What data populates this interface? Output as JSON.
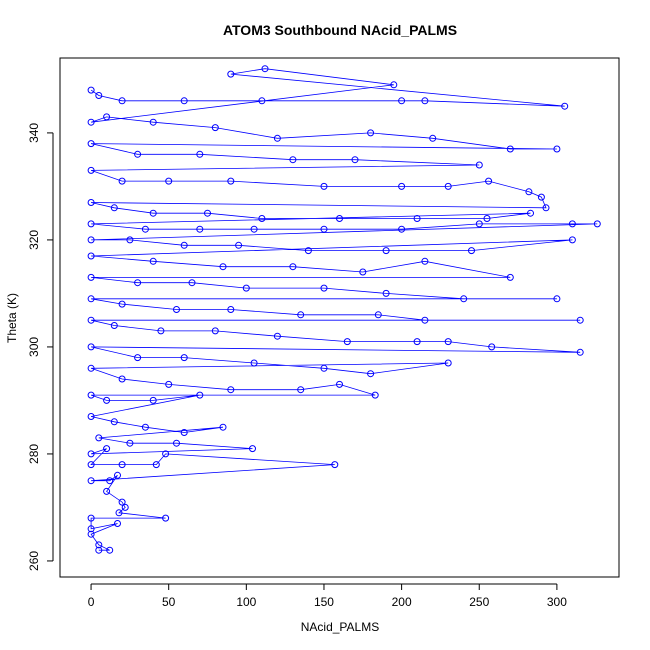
{
  "chart_data": {
    "type": "scatter",
    "title": "ATOM3 Southbound NAcid_PALMS",
    "xlabel": "NAcid_PALMS",
    "ylabel": "Theta (K)",
    "xlim": [
      -20,
      340
    ],
    "ylim": [
      257,
      354
    ],
    "x_ticks": [
      "0",
      "50",
      "100",
      "150",
      "200",
      "250",
      "300"
    ],
    "y_ticks": [
      "260",
      "280",
      "300",
      "320",
      "340"
    ],
    "grid": false,
    "legend": "none",
    "color": "#0000ff",
    "series": [
      {
        "points": [
          [
            0,
            348
          ],
          [
            5,
            347
          ],
          [
            20,
            346
          ],
          [
            60,
            346
          ],
          [
            110,
            346
          ],
          [
            200,
            346
          ],
          [
            215,
            346
          ],
          [
            305,
            345
          ],
          [
            90,
            351
          ],
          [
            112,
            352
          ],
          [
            195,
            349
          ],
          [
            0,
            342
          ],
          [
            10,
            343
          ],
          [
            40,
            342
          ],
          [
            80,
            341
          ],
          [
            120,
            339
          ],
          [
            180,
            340
          ],
          [
            220,
            339
          ],
          [
            270,
            337
          ],
          [
            300,
            337
          ],
          [
            0,
            338
          ],
          [
            30,
            336
          ],
          [
            70,
            336
          ],
          [
            130,
            335
          ],
          [
            170,
            335
          ],
          [
            250,
            334
          ],
          [
            0,
            333
          ],
          [
            20,
            331
          ],
          [
            50,
            331
          ],
          [
            90,
            331
          ],
          [
            150,
            330
          ],
          [
            200,
            330
          ],
          [
            230,
            330
          ],
          [
            256,
            331
          ],
          [
            282,
            329
          ],
          [
            290,
            328
          ],
          [
            293,
            326
          ],
          [
            0,
            327
          ],
          [
            15,
            326
          ],
          [
            40,
            325
          ],
          [
            75,
            325
          ],
          [
            110,
            324
          ],
          [
            160,
            324
          ],
          [
            210,
            324
          ],
          [
            255,
            324
          ],
          [
            283,
            325
          ],
          [
            0,
            323
          ],
          [
            35,
            322
          ],
          [
            70,
            322
          ],
          [
            105,
            322
          ],
          [
            150,
            322
          ],
          [
            200,
            322
          ],
          [
            250,
            323
          ],
          [
            310,
            323
          ],
          [
            326,
            323
          ],
          [
            0,
            320
          ],
          [
            25,
            320
          ],
          [
            60,
            319
          ],
          [
            95,
            319
          ],
          [
            140,
            318
          ],
          [
            190,
            318
          ],
          [
            245,
            318
          ],
          [
            310,
            320
          ],
          [
            0,
            317
          ],
          [
            40,
            316
          ],
          [
            85,
            315
          ],
          [
            130,
            315
          ],
          [
            175,
            314
          ],
          [
            215,
            316
          ],
          [
            270,
            313
          ],
          [
            0,
            313
          ],
          [
            30,
            312
          ],
          [
            65,
            312
          ],
          [
            100,
            311
          ],
          [
            150,
            311
          ],
          [
            190,
            310
          ],
          [
            240,
            309
          ],
          [
            300,
            309
          ],
          [
            0,
            309
          ],
          [
            20,
            308
          ],
          [
            55,
            307
          ],
          [
            90,
            307
          ],
          [
            135,
            306
          ],
          [
            185,
            306
          ],
          [
            215,
            305
          ],
          [
            315,
            305
          ],
          [
            0,
            305
          ],
          [
            15,
            304
          ],
          [
            45,
            303
          ],
          [
            80,
            303
          ],
          [
            120,
            302
          ],
          [
            165,
            301
          ],
          [
            210,
            301
          ],
          [
            230,
            301
          ],
          [
            258,
            300
          ],
          [
            315,
            299
          ],
          [
            0,
            300
          ],
          [
            30,
            298
          ],
          [
            60,
            298
          ],
          [
            105,
            297
          ],
          [
            150,
            296
          ],
          [
            180,
            295
          ],
          [
            230,
            297
          ],
          [
            0,
            296
          ],
          [
            20,
            294
          ],
          [
            50,
            293
          ],
          [
            90,
            292
          ],
          [
            135,
            292
          ],
          [
            160,
            293
          ],
          [
            183,
            291
          ],
          [
            0,
            291
          ],
          [
            10,
            290
          ],
          [
            40,
            290
          ],
          [
            70,
            291
          ],
          [
            0,
            287
          ],
          [
            15,
            286
          ],
          [
            35,
            285
          ],
          [
            60,
            284
          ],
          [
            85,
            285
          ],
          [
            5,
            283
          ],
          [
            25,
            282
          ],
          [
            55,
            282
          ],
          [
            104,
            281
          ],
          [
            0,
            280
          ],
          [
            10,
            281
          ],
          [
            0,
            278
          ],
          [
            20,
            278
          ],
          [
            42,
            278
          ],
          [
            48,
            280
          ],
          [
            157,
            278
          ],
          [
            0,
            275
          ],
          [
            12,
            275
          ],
          [
            17,
            276
          ],
          [
            10,
            273
          ],
          [
            20,
            271
          ],
          [
            22,
            270
          ],
          [
            18,
            269
          ],
          [
            48,
            268
          ],
          [
            0,
            268
          ],
          [
            0,
            266
          ],
          [
            17,
            267
          ],
          [
            0,
            265
          ],
          [
            5,
            263
          ],
          [
            12,
            262
          ],
          [
            5,
            262
          ]
        ]
      }
    ]
  }
}
